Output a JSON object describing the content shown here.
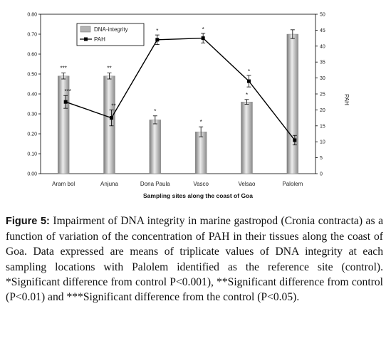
{
  "chart_data": {
    "type": "bar",
    "categories": [
      "Aram bol",
      "Anjuna",
      "Dona Paula",
      "Vasco",
      "Velsao",
      "Palolem"
    ],
    "xlabel": "Sampling sites along the coast of Goa",
    "ylabel_right": "PAH",
    "ylim": [
      0,
      0.8
    ],
    "y2lim": [
      0,
      50
    ],
    "yticks": [
      "0.00",
      "0.10",
      "0.20",
      "0.30",
      "0.40",
      "0.50",
      "0.60",
      "0.70",
      "0.80"
    ],
    "y2ticks": [
      "0",
      "5",
      "10",
      "15",
      "20",
      "25",
      "30",
      "35",
      "40",
      "45",
      "50"
    ],
    "grid": false,
    "legend_position": "top-left",
    "series": [
      {
        "name": "DNA-integrity",
        "type": "bar",
        "axis": "left",
        "values": [
          0.49,
          0.49,
          0.27,
          0.21,
          0.36,
          0.7
        ],
        "errors": [
          0.015,
          0.015,
          0.02,
          0.025,
          0.012,
          0.022
        ],
        "annotations": [
          "***",
          "**",
          "*",
          "*",
          "*",
          ""
        ]
      },
      {
        "name": "PAH",
        "type": "line",
        "axis": "right",
        "values": [
          22.5,
          17.5,
          42,
          42.5,
          29,
          10.5
        ],
        "errors": [
          2,
          2.5,
          1.5,
          1.5,
          1.8,
          1.5
        ],
        "annotations": [
          "***",
          "**",
          "*",
          "*",
          "*",
          ""
        ]
      }
    ],
    "colors": {
      "bar": "#b3b3b3",
      "line": "#000000"
    }
  },
  "caption": {
    "label": "Figure 5:",
    "text": " Impairment of DNA integrity in marine gastropod (Cronia contracta) as a function of variation of the concentration of PAH in their tissues along the coast of Goa. Data expressed are means of triplicate values of DNA integrity at each sampling locations with Palolem identified as the reference site (control). *Significant difference from control P<0.001), **Significant difference from control (P<0.01) and ***Significant difference from the control (P<0.05)."
  }
}
